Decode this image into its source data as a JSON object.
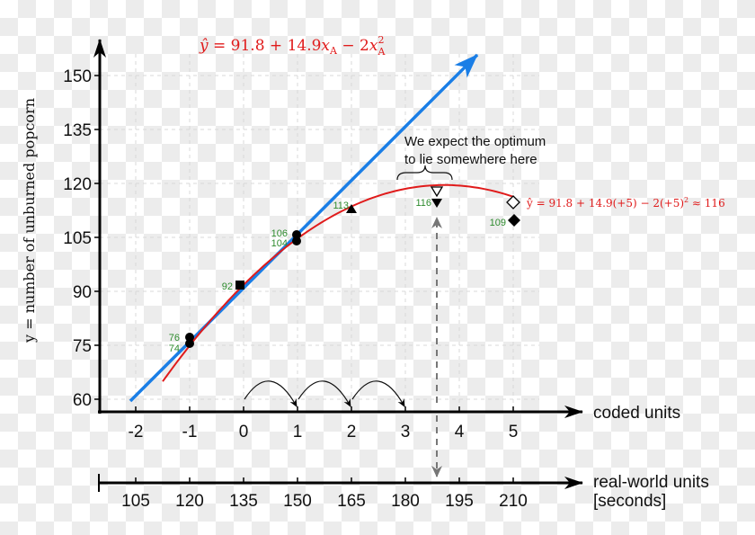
{
  "chart_data": {
    "type": "scatter",
    "title": "",
    "ylabel": "y = number of unburned popcorn",
    "xlabel": "coded units",
    "x2label": [
      "real-world units",
      "[seconds]"
    ],
    "ylim": [
      60,
      150
    ],
    "y_ticks": [
      60,
      75,
      90,
      105,
      120,
      135,
      150
    ],
    "x_ticks_coded": [
      -2,
      -1,
      0,
      1,
      2,
      3,
      4,
      5
    ],
    "x_ticks_real": [
      105,
      120,
      135,
      150,
      165,
      180,
      195,
      210
    ],
    "grid": true,
    "points": [
      {
        "x": -1,
        "y": 76,
        "label": "76",
        "marker": "circle"
      },
      {
        "x": -1,
        "y": 74,
        "label": "74",
        "marker": "circle"
      },
      {
        "x": 0,
        "y": 92,
        "label": "92",
        "marker": "square"
      },
      {
        "x": 1,
        "y": 106,
        "label": "106",
        "marker": "circle"
      },
      {
        "x": 1,
        "y": 104,
        "label": "104",
        "marker": "circle"
      },
      {
        "x": 2,
        "y": 113,
        "label": "113",
        "marker": "triangle-up"
      },
      {
        "x": 3.5,
        "y": 116,
        "label": "116",
        "marker": "triangle-down"
      },
      {
        "x": 5,
        "y": 109,
        "label": "109",
        "marker": "diamond"
      }
    ],
    "predicted_points": [
      {
        "x": 3.5,
        "y": 118,
        "marker": "triangle-down-open"
      },
      {
        "x": 5,
        "y": 116,
        "marker": "diamond-open"
      }
    ],
    "series": [
      {
        "name": "quadratic model",
        "equation": "ŷ = 91.8 + 14.9x_A − 2x_A²",
        "color": "#e01b1b",
        "x_range": [
          -1.5,
          5
        ]
      },
      {
        "name": "linear direction (steepest ascent)",
        "color": "#1a7ee6",
        "from": [
          -2.1,
          59.5
        ],
        "to": [
          4.3,
          155.5
        ]
      }
    ],
    "annotations": {
      "model_equation": "ŷ = 91.8 + 14.9x",
      "model_sub": "A",
      "model_minus": " − 2x",
      "model_sup": "2",
      "prediction": "ŷ = 91.8 + 14.9(+5) − 2(+5)",
      "prediction_sup": "2",
      "prediction_result": " ≈ 116",
      "optimum_note_line1": "We expect the optimum",
      "optimum_note_line2": "to lie somewhere here"
    },
    "colors": {
      "red": "#e01b1b",
      "blue": "#1a7ee6",
      "label_green": "#2e8b2e",
      "dash_gray": "#777777"
    }
  }
}
